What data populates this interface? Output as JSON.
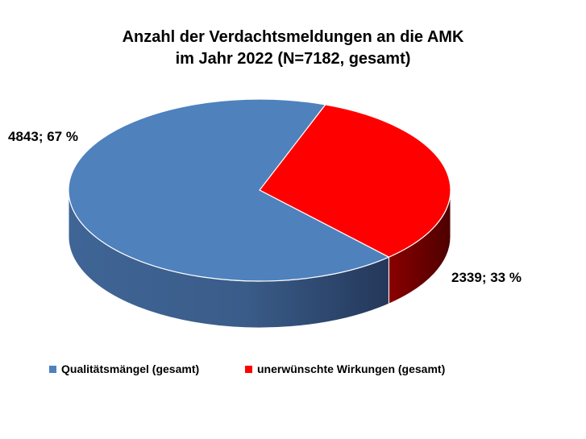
{
  "chart_data": {
    "type": "pie",
    "title": [
      "Anzahl der Verdachtsmeldungen an die AMK",
      "im Jahr 2022 (N=7182, gesamt)"
    ],
    "slices": [
      {
        "name": "Qualitätsmängel (gesamt)",
        "value": 4843,
        "percent": 67,
        "label": "4843; 67 %",
        "color": "#4F81BD"
      },
      {
        "name": "unerwünschte Wirkungen (gesamt)",
        "value": 2339,
        "percent": 33,
        "label": "2339; 33 %",
        "color": "#FF0000"
      }
    ],
    "legend_position": "bottom",
    "style": "3d"
  }
}
